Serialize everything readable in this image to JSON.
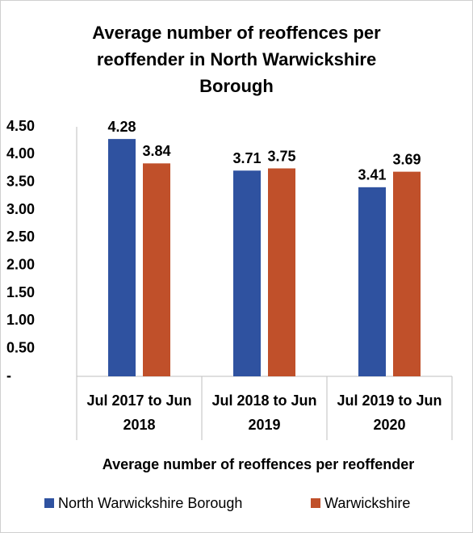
{
  "chart_data": {
    "type": "bar",
    "title": "Average number of reoffences per reoffender in North Warwickshire Borough",
    "x_label": "Average number of reoffences per reoffender",
    "categories": [
      "Jul 2017 to Jun 2018",
      "Jul 2018 to Jun 2019",
      "Jul 2019 to Jun 2020"
    ],
    "series": [
      {
        "name": "North Warwickshire Borough",
        "color": "#2f52a0",
        "values": [
          4.28,
          3.71,
          3.41
        ]
      },
      {
        "name": "Warwickshire",
        "color": "#c0502a",
        "values": [
          3.84,
          3.75,
          3.69
        ]
      }
    ],
    "ylim": [
      0,
      4.5
    ],
    "yticks": [
      {
        "value": 0,
        "label": "-"
      },
      {
        "value": 0.5,
        "label": "0.50"
      },
      {
        "value": 1,
        "label": "1.00"
      },
      {
        "value": 1.5,
        "label": "1.50"
      },
      {
        "value": 2,
        "label": "2.00"
      },
      {
        "value": 2.5,
        "label": "2.50"
      },
      {
        "value": 3,
        "label": "3.00"
      },
      {
        "value": 3.5,
        "label": "3.50"
      },
      {
        "value": 4,
        "label": "4.00"
      },
      {
        "value": 4.5,
        "label": "4.50"
      }
    ],
    "legend": "bottom"
  }
}
